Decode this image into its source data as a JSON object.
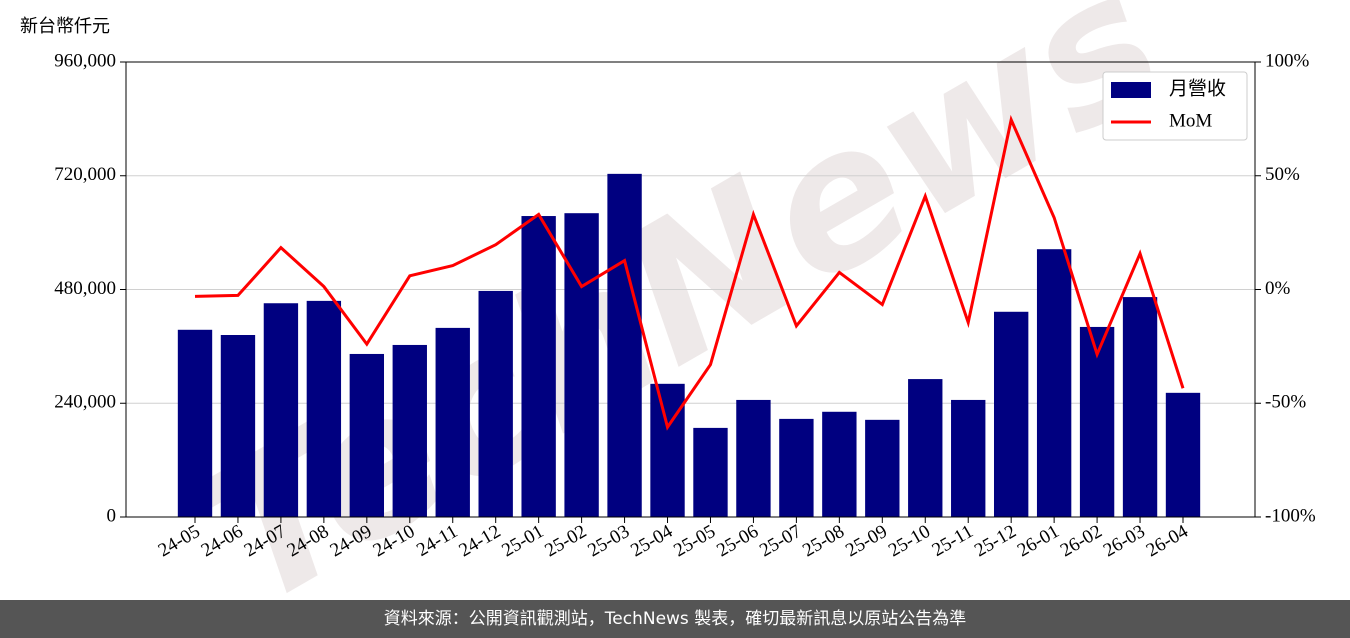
{
  "chart_data": {
    "type": "bar_line",
    "y_label": "新台幣仟元",
    "watermark": "TechNews",
    "categories": [
      "24-05",
      "24-06",
      "24-07",
      "24-08",
      "24-09",
      "24-10",
      "24-11",
      "24-12",
      "25-01",
      "25-02",
      "25-03",
      "25-04",
      "25-05",
      "25-06",
      "25-07",
      "25-08",
      "25-09",
      "25-10",
      "25-11",
      "25-12",
      "26-01",
      "26-02",
      "26-03",
      "26-04"
    ],
    "series": [
      {
        "name": "月營收",
        "type": "bar",
        "color": "#000080",
        "values": [
          395000,
          384000,
          451000,
          456000,
          344000,
          363000,
          399000,
          477000,
          635000,
          641000,
          724000,
          281000,
          188000,
          247000,
          207000,
          222000,
          205000,
          291000,
          247000,
          433000,
          565000,
          401000,
          464000,
          262000
        ]
      },
      {
        "name": "MoM",
        "type": "line",
        "axis": "y2",
        "color": "#ff0000",
        "values": [
          -3.0,
          -2.6,
          18.4,
          1.3,
          -24.0,
          6.0,
          10.5,
          19.7,
          33.0,
          1.3,
          12.7,
          -60.5,
          -33.0,
          33.0,
          -16.0,
          7.5,
          -6.6,
          41.0,
          -14.5,
          74.6,
          31.6,
          -28.5,
          15.8,
          -43.4
        ]
      }
    ],
    "ylim": [
      0,
      960000
    ],
    "yticks": [
      0,
      {
        "value": 240000,
        "label": "240,000"
      },
      {
        "value": 480000,
        "label": "480,000"
      },
      {
        "value": 720000,
        "label": "720,000"
      },
      {
        "value": 960000,
        "label": "960,000"
      }
    ],
    "y2lim": [
      -100,
      100
    ],
    "y2ticks": [
      {
        "value": -100,
        "label": "-100%"
      },
      {
        "value": -50,
        "label": "-50%"
      },
      {
        "value": 0,
        "label": "0%"
      },
      {
        "value": 50,
        "label": "50%"
      },
      {
        "value": 100,
        "label": "100%"
      }
    ],
    "grid": true,
    "legend": "upper right"
  },
  "footer": "資料來源：公開資訊觀測站，TechNews 製表，確切最新訊息以原站公告為準"
}
